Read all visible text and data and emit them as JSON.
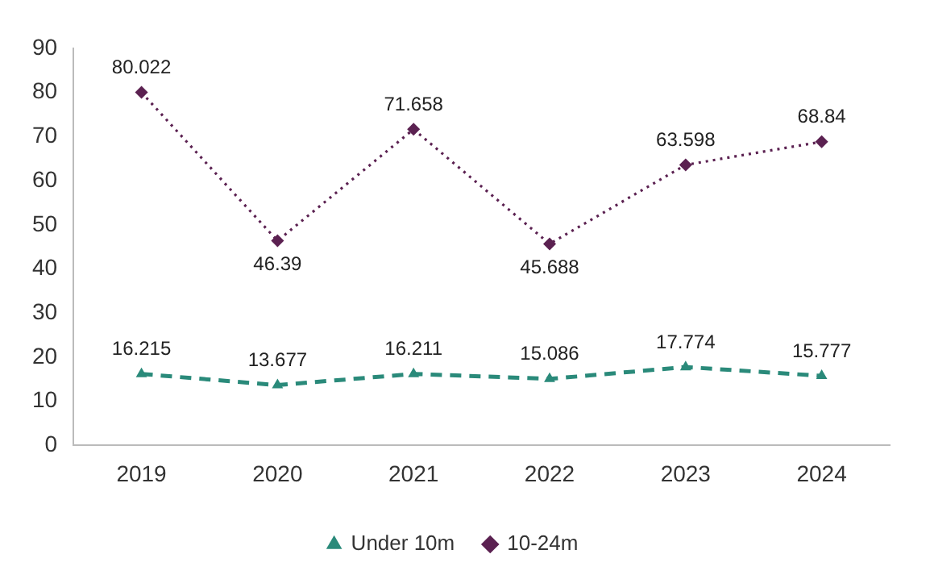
{
  "chart_data": {
    "type": "line",
    "categories": [
      "2019",
      "2020",
      "2021",
      "2022",
      "2023",
      "2024"
    ],
    "series": [
      {
        "name": "Under 10m",
        "color": "#2a8a7a",
        "line_style": "dashed",
        "marker": "triangle",
        "values": [
          16.215,
          13.677,
          16.211,
          15.086,
          17.774,
          15.777
        ]
      },
      {
        "name": "10-24m",
        "color": "#5b2151",
        "line_style": "dotted",
        "marker": "diamond",
        "values": [
          80.022,
          46.39,
          71.658,
          45.688,
          63.598,
          68.84
        ]
      }
    ],
    "ylim": [
      0,
      90
    ],
    "yticks": [
      0,
      10,
      20,
      30,
      40,
      50,
      60,
      70,
      80,
      90
    ],
    "grid": false,
    "legend": "bottom",
    "data_labels": true
  }
}
